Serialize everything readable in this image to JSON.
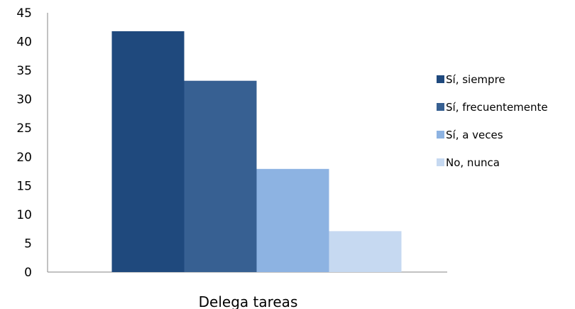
{
  "chart_data": {
    "type": "bar",
    "categories": [
      "Delega tareas"
    ],
    "series": [
      {
        "name": "Sí, siempre",
        "values": [
          41.8
        ],
        "color": "#1F497D"
      },
      {
        "name": "Sí, frecuentemente",
        "values": [
          33.2
        ],
        "color": "#376092"
      },
      {
        "name": "Sí, a veces",
        "values": [
          17.9
        ],
        "color": "#8DB3E2"
      },
      {
        "name": "No, nunca",
        "values": [
          7.1
        ],
        "color": "#C6D9F1"
      }
    ],
    "ylim": [
      0,
      45
    ],
    "yticks": [
      "0",
      "5",
      "10",
      "15",
      "20",
      "25",
      "30",
      "35",
      "40",
      "45"
    ],
    "grid": false,
    "legend_position": "right"
  }
}
